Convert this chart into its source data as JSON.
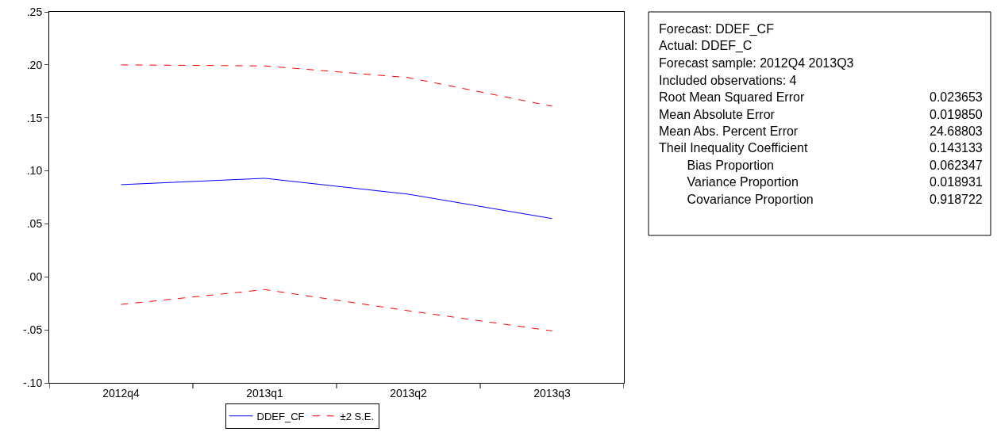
{
  "chart_data": {
    "type": "line",
    "categories": [
      "2012q4",
      "2013q1",
      "2013q2",
      "2013q3"
    ],
    "series": [
      {
        "name": "DDEF_CF",
        "color": "#0000ff",
        "values": [
          0.087,
          0.093,
          0.078,
          0.055
        ],
        "line_style": "solid"
      },
      {
        "name": "±2 S.E.",
        "color": "#ff0000",
        "values": [
          0.2,
          0.199,
          0.188,
          0.161
        ],
        "line_style": "dashed"
      },
      {
        "color": "#ff0000",
        "values": [
          -0.026,
          -0.012,
          -0.032,
          -0.051
        ],
        "line_style": "dashed"
      }
    ],
    "ylim": [
      -0.1,
      0.25
    ],
    "yticks": [
      {
        "value": -0.1,
        "label": "-.10"
      },
      {
        "value": -0.05,
        "label": "-.05"
      },
      {
        "value": 0.0,
        "label": ".00"
      },
      {
        "value": 0.05,
        "label": ".05"
      },
      {
        "value": 0.1,
        "label": ".10"
      },
      {
        "value": 0.15,
        "label": ".15"
      },
      {
        "value": 0.2,
        "label": ".20"
      },
      {
        "value": 0.25,
        "label": ".25"
      }
    ],
    "legend": "bottom",
    "marker": "none",
    "annotations": [
      "Forecast: DDEF_CF",
      "Actual: DDEF_C",
      "Forecast sample: 2012Q4 2013Q3",
      "Included observations: 4",
      "Root Mean Squared Error\t0.023653",
      "Mean Absolute Error\t0.019850",
      "Mean Abs. Percent Error\t24.68803",
      "Theil Inequality Coefficient\t0.143133",
      "    Bias Proportion\t0.062347",
      "    Variance Proportion\t0.018931",
      "    Covariance Proportion\t0.918722"
    ]
  }
}
